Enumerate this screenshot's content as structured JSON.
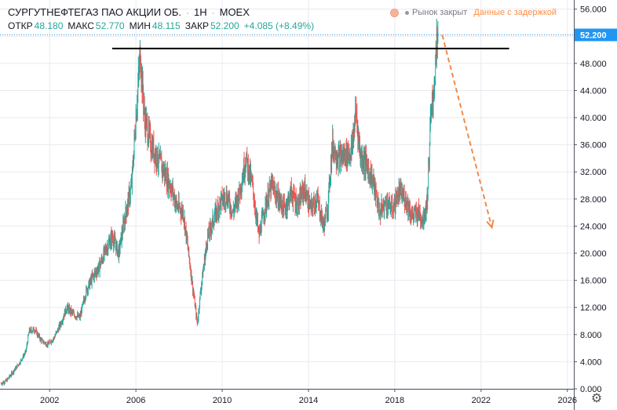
{
  "header": {
    "title": "СУРГУТНЕФТЕГАЗ ПАО АКЦИИ ОБ.",
    "interval": "1Н",
    "exchange": "MOEX",
    "ohlc": [
      {
        "label": "ОТКР",
        "value": "48.180"
      },
      {
        "label": "МАКС",
        "value": "52.770"
      },
      {
        "label": "МИН",
        "value": "48.115"
      },
      {
        "label": "ЗАКР",
        "value": "52.200"
      },
      {
        "label": "",
        "value": "+4.085 (+8.49%)"
      }
    ]
  },
  "status": {
    "market": "Рынок закрыт",
    "delay": "Данные с задержкой"
  },
  "colors": {
    "up": "#26a69a",
    "down": "#ef5350",
    "price_line": "#2196f3",
    "price_label_bg": "#2196f3",
    "arrow": "#f08a4b",
    "level_line": "#000000",
    "axis_text": "#131722",
    "grid": "#e8eaf0"
  },
  "settings_icon": "gear-icon",
  "chart_data": {
    "type": "candlestick",
    "x_ticks": [
      "2002",
      "2006",
      "2010",
      "2014",
      "2018",
      "2022",
      "2026"
    ],
    "y_ticks": [
      "0.000",
      "4.000",
      "8.000",
      "12.000",
      "16.000",
      "20.000",
      "24.000",
      "28.000",
      "32.000",
      "36.000",
      "40.000",
      "44.000",
      "48.000",
      "52.000",
      "56.000"
    ],
    "ylim": [
      0,
      57
    ],
    "xlim": [
      1999.7,
      2026.3
    ],
    "last_price": "52.200",
    "grid": true,
    "price_path": [
      [
        1999.75,
        0.8
      ],
      [
        2000.0,
        1.2
      ],
      [
        2000.3,
        2.5
      ],
      [
        2000.6,
        3.8
      ],
      [
        2000.9,
        5.5
      ],
      [
        2001.05,
        8.5
      ],
      [
        2001.3,
        8.8
      ],
      [
        2001.6,
        7.2
      ],
      [
        2001.9,
        6.5
      ],
      [
        2002.2,
        7.5
      ],
      [
        2002.5,
        9.5
      ],
      [
        2002.8,
        12.0
      ],
      [
        2003.1,
        11.0
      ],
      [
        2003.4,
        10.5
      ],
      [
        2003.7,
        14.5
      ],
      [
        2004.0,
        16.5
      ],
      [
        2004.3,
        18.0
      ],
      [
        2004.6,
        20.5
      ],
      [
        2004.9,
        22.5
      ],
      [
        2005.2,
        20.0
      ],
      [
        2005.5,
        25.5
      ],
      [
        2005.8,
        30.0
      ],
      [
        2006.0,
        40.0
      ],
      [
        2006.2,
        49.5
      ],
      [
        2006.4,
        40.0
      ],
      [
        2006.7,
        36.0
      ],
      [
        2007.0,
        34.0
      ],
      [
        2007.3,
        32.0
      ],
      [
        2007.6,
        30.0
      ],
      [
        2007.9,
        27.0
      ],
      [
        2008.2,
        26.0
      ],
      [
        2008.5,
        18.5
      ],
      [
        2008.75,
        12.0
      ],
      [
        2008.85,
        9.5
      ],
      [
        2009.0,
        14.5
      ],
      [
        2009.3,
        22.0
      ],
      [
        2009.6,
        25.0
      ],
      [
        2009.9,
        27.5
      ],
      [
        2010.2,
        28.5
      ],
      [
        2010.5,
        26.0
      ],
      [
        2010.8,
        29.0
      ],
      [
        2011.1,
        34.0
      ],
      [
        2011.4,
        30.0
      ],
      [
        2011.7,
        22.5
      ],
      [
        2012.0,
        27.0
      ],
      [
        2012.3,
        30.0
      ],
      [
        2012.6,
        28.0
      ],
      [
        2012.9,
        26.5
      ],
      [
        2013.2,
        29.0
      ],
      [
        2013.5,
        27.0
      ],
      [
        2013.8,
        29.5
      ],
      [
        2014.1,
        26.5
      ],
      [
        2014.4,
        28.0
      ],
      [
        2014.7,
        24.0
      ],
      [
        2014.9,
        27.0
      ],
      [
        2015.1,
        36.0
      ],
      [
        2015.4,
        34.0
      ],
      [
        2015.7,
        34.5
      ],
      [
        2016.0,
        35.0
      ],
      [
        2016.2,
        41.0
      ],
      [
        2016.4,
        34.5
      ],
      [
        2016.7,
        33.0
      ],
      [
        2017.0,
        30.5
      ],
      [
        2017.3,
        26.0
      ],
      [
        2017.6,
        27.5
      ],
      [
        2017.9,
        26.5
      ],
      [
        2018.2,
        29.0
      ],
      [
        2018.5,
        28.0
      ],
      [
        2018.8,
        25.5
      ],
      [
        2019.1,
        26.0
      ],
      [
        2019.3,
        25.0
      ],
      [
        2019.5,
        27.5
      ],
      [
        2019.65,
        39.0
      ],
      [
        2019.8,
        44.0
      ],
      [
        2019.9,
        48.5
      ],
      [
        2020.0,
        52.2
      ]
    ],
    "annotations": [
      {
        "type": "horizontal_line",
        "x0": 2004.9,
        "x1": 2023.3,
        "y": 50.2
      },
      {
        "type": "arrow",
        "from": [
          2020.2,
          52.2
        ],
        "to": [
          2022.5,
          23.8
        ]
      }
    ]
  }
}
